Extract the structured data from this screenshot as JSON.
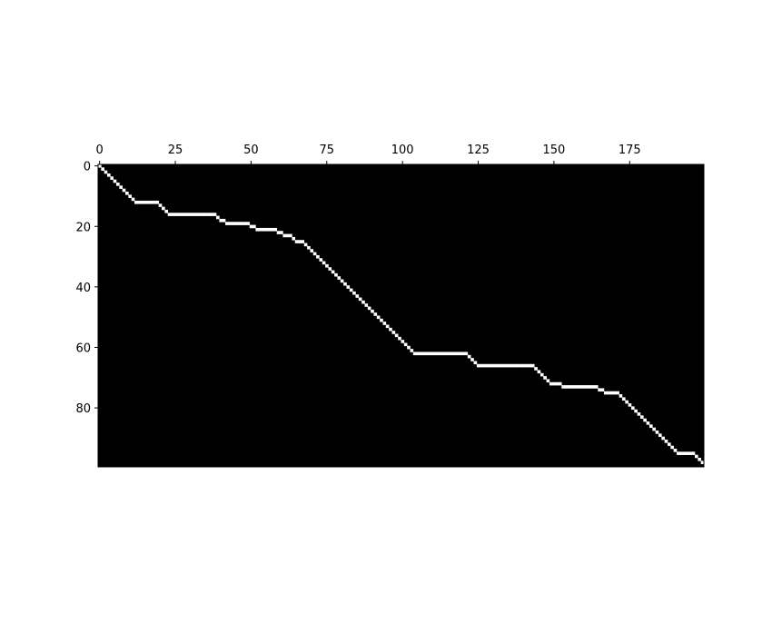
{
  "chart_data": {
    "type": "heatmap",
    "title": "",
    "xlabel": "",
    "ylabel": "",
    "x_ticks": [
      0,
      25,
      50,
      75,
      100,
      125,
      150,
      175
    ],
    "y_ticks": [
      0,
      20,
      40,
      60,
      80
    ],
    "xlim": [
      -0.5,
      199.5
    ],
    "ylim": [
      99.5,
      -0.5
    ],
    "x_axis_position": "top",
    "grid": false,
    "legend": "none",
    "colors": {
      "background": "#000000",
      "path": "#ffffff"
    },
    "series": [
      {
        "points": [
          [
            0,
            0
          ],
          [
            11,
            11
          ],
          [
            19,
            12
          ],
          [
            22,
            15
          ],
          [
            38,
            16
          ],
          [
            41,
            18
          ],
          [
            49,
            19
          ],
          [
            51,
            20
          ],
          [
            58,
            21
          ],
          [
            60,
            22
          ],
          [
            63,
            23
          ],
          [
            67,
            25
          ],
          [
            103,
            61
          ],
          [
            121,
            62
          ],
          [
            124,
            65
          ],
          [
            143,
            66
          ],
          [
            148,
            71
          ],
          [
            152,
            72
          ],
          [
            164,
            73
          ],
          [
            166,
            74
          ],
          [
            171,
            75
          ],
          [
            190,
            94
          ],
          [
            196,
            95
          ],
          [
            199,
            98
          ]
        ]
      }
    ]
  }
}
